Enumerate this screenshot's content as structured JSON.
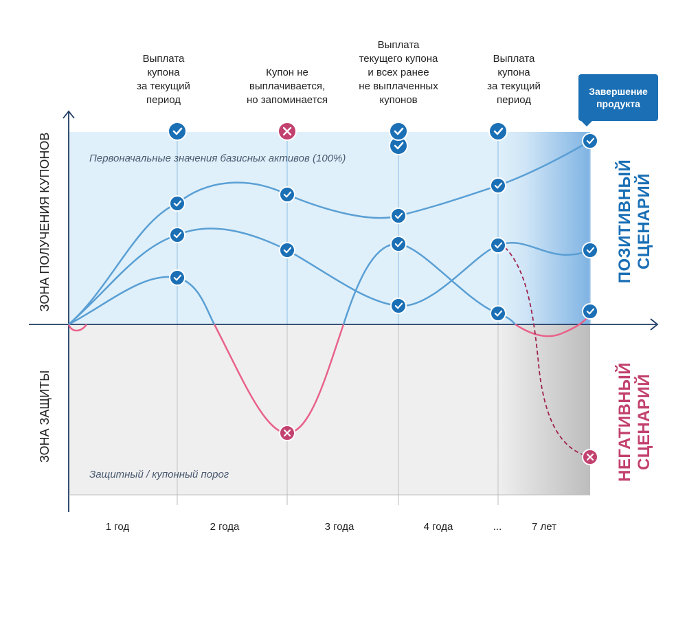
{
  "annotations": {
    "a1": "Выплата\nкупона\nза текущий\nпериод",
    "a2": "Купон не\nвыплачивается,\nно запоминается",
    "a3": "Выплата\nтекущего купона\nи всех ранее\nне выплаченных\nкупонов",
    "a4": "Выплата\nкупона\nза текущий\nпериод"
  },
  "callout": "Завершение\nпродукта",
  "zones": {
    "coupon_zone": "ЗОНА ПОЛУЧЕНИЯ КУПОНОВ",
    "protection_zone": "ЗОНА ЗАЩИТЫ",
    "initial_values": "Первоначальные значения базисных активов (100%)",
    "threshold": "Защитный / купонный порог"
  },
  "scenarios": {
    "positive": "ПОЗИТИВНЫЙ\nСЦЕНАРИЙ",
    "negative": "НЕГАТИВНЫЙ\nСЦЕНАРИЙ"
  },
  "x_labels": [
    "1 год",
    "2 года",
    "3 года",
    "4 года",
    "...",
    "7 лет"
  ],
  "colors": {
    "coupon_zone_bg": "#dff0fa",
    "protection_zone_bg": "#efefef",
    "positive_line": "#5a9fd4",
    "negative_line": "#e8628a",
    "dashed_line": "#a0244f",
    "check_marker": "#1a6fb5",
    "cross_marker": "#c2416e",
    "positive_text": "#1a6fb5",
    "negative_text": "#c2416e",
    "axis": "#1f3b63"
  },
  "icons": [
    "check-icon",
    "cross-icon"
  ]
}
